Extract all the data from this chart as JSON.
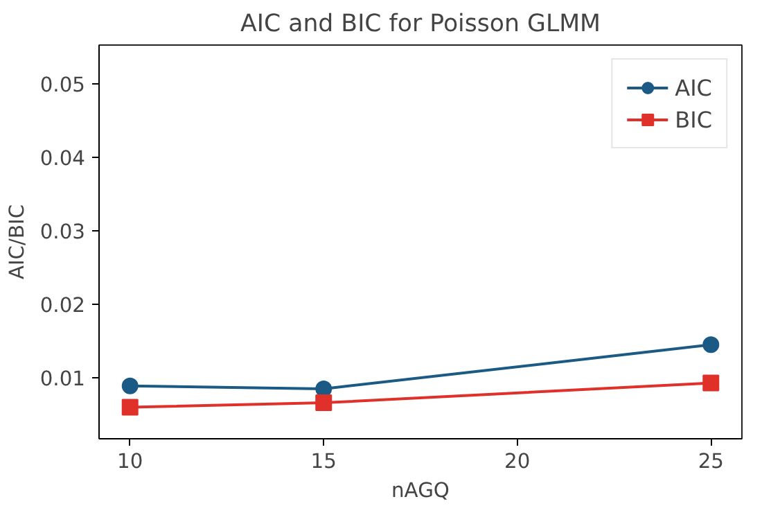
{
  "chart_data": {
    "type": "line",
    "title": "AIC and BIC for Poisson GLMM",
    "xlabel": "nAGQ",
    "ylabel": "AIC/BIC",
    "x": [
      10,
      15,
      25
    ],
    "series": [
      {
        "name": "AIC",
        "color": "#1a5a85",
        "marker": "circle",
        "values": [
          0.0089,
          0.0085,
          0.0145
        ]
      },
      {
        "name": "BIC",
        "color": "#e0302a",
        "marker": "square",
        "values": [
          0.006,
          0.0066,
          0.0093
        ]
      }
    ],
    "xlim": [
      9.2,
      25.8
    ],
    "xticks": [
      10,
      15,
      20,
      25
    ],
    "ylim": [
      0.0017,
      0.0553
    ],
    "yticks": [
      {
        "value": 0.01,
        "label": "0.01"
      },
      {
        "value": 0.02,
        "label": "0.02"
      },
      {
        "value": 0.03,
        "label": "0.03"
      },
      {
        "value": 0.04,
        "label": "0.04"
      },
      {
        "value": 0.05,
        "label": "0.05"
      }
    ],
    "grid": false,
    "legend": "top right",
    "line_style": "solid"
  }
}
